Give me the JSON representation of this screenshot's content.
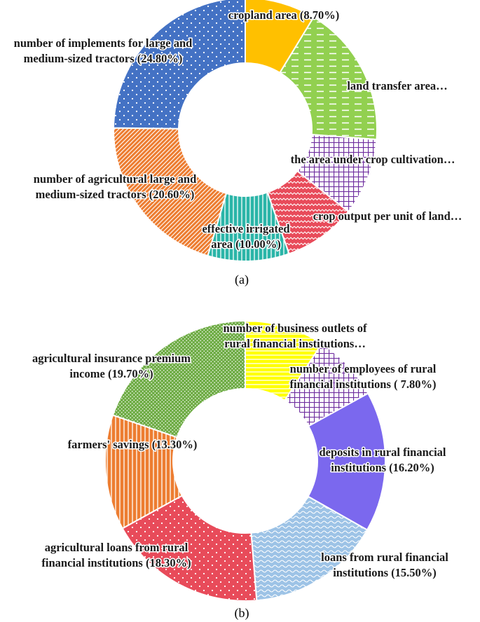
{
  "chart_data": [
    {
      "type": "pie",
      "caption": "(a)",
      "slices": [
        {
          "label": "cropland area (8.70%)",
          "value": 8.7,
          "color": "#FFC000",
          "pattern": "none"
        },
        {
          "label": "land transfer area…",
          "value": 17.5,
          "color": "#92D050",
          "pattern": "dashes"
        },
        {
          "label": "the area under crop cultivation…",
          "value": 9.5,
          "color": "#7030A0",
          "pattern": "grid"
        },
        {
          "label": "crop output per unit of land…",
          "value": 8.9,
          "color": "#E84B5A",
          "pattern": "zigzag"
        },
        {
          "label": "effective irrigated area (10.00%)",
          "value": 10.0,
          "color": "#2BB5A8",
          "pattern": "vlines"
        },
        {
          "label": "number of agricultural large and medium-sized tractors (20.60%)",
          "value": 20.6,
          "color": "#ED7D31",
          "pattern": "diagonal"
        },
        {
          "label": "number of implements for large and medium-sized tractors (24.80%)",
          "value": 24.8,
          "color": "#4472C4",
          "pattern": "dots"
        }
      ],
      "label_lines": [
        [
          "cropland area (8.70%)"
        ],
        [
          "land transfer area…"
        ],
        [
          "the area under crop cultivation…"
        ],
        [
          "crop output per unit of land…"
        ],
        [
          "effective irrigated",
          "area (10.00%)"
        ],
        [
          "number of agricultural large and",
          "medium-sized tractors (20.60%)"
        ],
        [
          "number of implements for large and",
          "medium-sized tractors (24.80%)"
        ]
      ]
    },
    {
      "type": "pie",
      "caption": "(b)",
      "slices": [
        {
          "label": "number of business outlets of rural financial institutions…",
          "value": 9.2,
          "color": "#FFFF00",
          "pattern": "hlines"
        },
        {
          "label": "number of employees of rural financial institutions ( 7.80%)",
          "value": 7.8,
          "color": "#7030A0",
          "pattern": "grid"
        },
        {
          "label": "deposits in rural financial institutions (16.20%)",
          "value": 16.2,
          "color": "#7B68EE",
          "pattern": "none"
        },
        {
          "label": "loans from rural financial institutions (15.50%)",
          "value": 15.5,
          "color": "#9DC3E6",
          "pattern": "waves"
        },
        {
          "label": "agricultural loans from rural financial institutions (18.30%)",
          "value": 18.3,
          "color": "#E84B5A",
          "pattern": "dots"
        },
        {
          "label": "farmers' savings (13.30%)",
          "value": 13.3,
          "color": "#ED7D31",
          "pattern": "vlines"
        },
        {
          "label": "agricultural insurance premium income (19.70%)",
          "value": 19.7,
          "color": "#70AD47",
          "pattern": "finedots"
        }
      ],
      "label_lines": [
        [
          "number of business outlets of",
          "rural financial institutions…"
        ],
        [
          "number of employees of rural",
          "financial institutions ( 7.80%)"
        ],
        [
          "deposits in rural financial",
          "institutions (16.20%)"
        ],
        [
          "loans from rural financial",
          "institutions (15.50%)"
        ],
        [
          "agricultural loans from rural",
          "financial institutions (18.30%)"
        ],
        [
          "farmers' savings (13.30%)"
        ],
        [
          "agricultural insurance premium",
          "income (19.70%)"
        ]
      ]
    }
  ]
}
